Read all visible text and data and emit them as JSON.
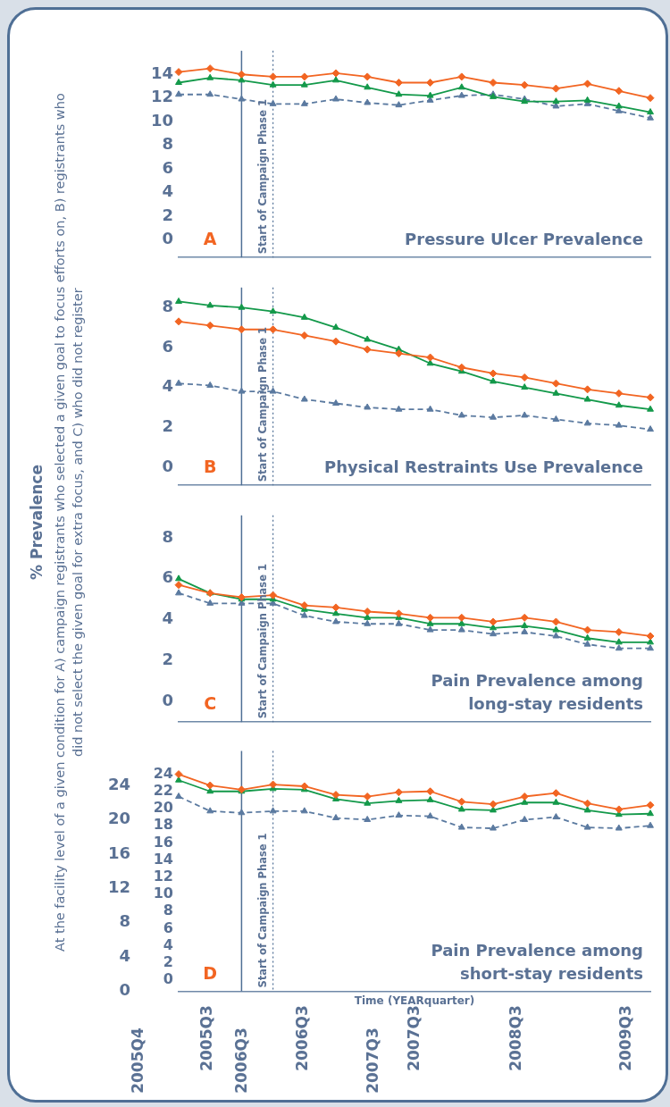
{
  "chart_data": [
    {
      "type": "line",
      "title": "Pressure Ulcer Prevalence",
      "categories": [
        null,
        null,
        null,
        null,
        null,
        null,
        null,
        null,
        null,
        null,
        null,
        null,
        null,
        null,
        null,
        null
      ],
      "series": [
        {
          "color": "#f26522",
          "marker": "diamond",
          "line_style": "solid",
          "values": [
            14.2,
            14.5,
            14.0,
            13.8,
            13.8,
            14.1,
            13.8,
            13.3,
            13.3,
            13.8,
            13.3,
            13.1,
            12.8,
            13.2,
            12.6,
            12.0
          ]
        },
        {
          "color": "#13994a",
          "marker": "triangle",
          "line_style": "solid",
          "values": [
            13.3,
            13.7,
            13.5,
            13.1,
            13.1,
            13.5,
            12.9,
            12.3,
            12.2,
            12.9,
            12.1,
            11.7,
            11.7,
            11.8,
            11.3,
            10.8
          ]
        },
        {
          "color": "#5b7aa0",
          "marker": "triangle",
          "line_style": "dashed",
          "values": [
            12.3,
            12.3,
            11.9,
            11.5,
            11.5,
            11.9,
            11.6,
            11.4,
            11.8,
            12.2,
            12.3,
            11.9,
            11.3,
            11.5,
            10.9,
            10.3
          ]
        }
      ],
      "ylim": [
        -1.5,
        16
      ],
      "yticks": [
        0,
        2,
        4,
        6,
        8,
        10,
        12,
        14
      ],
      "grid": false,
      "legend": false,
      "tick_labels": "y",
      "annotations": [
        "A",
        "Start of Campaign Phase 1"
      ]
    },
    {
      "type": "line",
      "title": "Physical Restraints Use Prevalence",
      "categories": [
        null,
        null,
        null,
        null,
        null,
        null,
        null,
        null,
        null,
        null,
        null,
        null,
        null,
        null,
        null,
        null
      ],
      "series": [
        {
          "color": "#f26522",
          "marker": "diamond",
          "line_style": "solid",
          "values": [
            7.3,
            7.1,
            6.9,
            6.9,
            6.6,
            6.3,
            5.9,
            5.7,
            5.5,
            5.0,
            4.7,
            4.5,
            4.2,
            3.9,
            3.7,
            3.5
          ]
        },
        {
          "color": "#13994a",
          "marker": "triangle",
          "line_style": "solid",
          "values": [
            8.3,
            8.1,
            8.0,
            7.8,
            7.5,
            7.0,
            6.4,
            5.9,
            5.2,
            4.8,
            4.3,
            4.0,
            3.7,
            3.4,
            3.1,
            2.9
          ]
        },
        {
          "color": "#5b7aa0",
          "marker": "triangle",
          "line_style": "dashed",
          "values": [
            4.2,
            4.1,
            3.8,
            3.8,
            3.4,
            3.2,
            3.0,
            2.9,
            2.9,
            2.6,
            2.5,
            2.6,
            2.4,
            2.2,
            2.1,
            1.9
          ]
        }
      ],
      "ylim": [
        -0.9,
        9
      ],
      "yticks": [
        0,
        2,
        4,
        6,
        8
      ],
      "grid": false,
      "legend": false,
      "tick_labels": "y",
      "annotations": [
        "B",
        "Start of Campaign Phase 1"
      ]
    },
    {
      "type": "line",
      "title": "Pain Prevalence among\nlong-stay residents",
      "ylabel": "% Prevalence",
      "subtitle": "At the facility level of a given condition for A) campaign registrants who selected a given goal to focus efforts on,  B) registrants who did not select the given goal for extra focus, and C) who did not register",
      "categories": [
        null,
        null,
        null,
        null,
        null,
        null,
        null,
        null,
        null,
        null,
        null,
        null,
        null,
        null,
        null,
        null
      ],
      "series": [
        {
          "color": "#f26522",
          "marker": "diamond",
          "line_style": "solid",
          "values": [
            5.7,
            5.3,
            5.1,
            5.2,
            4.7,
            4.6,
            4.4,
            4.3,
            4.1,
            4.1,
            3.9,
            4.1,
            3.9,
            3.5,
            3.4,
            3.2
          ]
        },
        {
          "color": "#13994a",
          "marker": "triangle",
          "line_style": "solid",
          "values": [
            6.0,
            5.3,
            5.0,
            5.0,
            4.5,
            4.3,
            4.1,
            4.1,
            3.8,
            3.8,
            3.6,
            3.7,
            3.5,
            3.1,
            2.9,
            2.9
          ]
        },
        {
          "color": "#5b7aa0",
          "marker": "triangle",
          "line_style": "dashed",
          "values": [
            5.3,
            4.8,
            4.8,
            4.8,
            4.2,
            3.9,
            3.8,
            3.8,
            3.5,
            3.5,
            3.3,
            3.4,
            3.2,
            2.8,
            2.6,
            2.6
          ]
        }
      ],
      "ylim": [
        -1,
        9.1
      ],
      "yticks": [
        0,
        2,
        4,
        6,
        8
      ],
      "grid": false,
      "legend": false,
      "tick_labels": "y",
      "annotations": [
        "C",
        "Start of Campaign Phase 1"
      ]
    },
    {
      "type": "line",
      "title": "Pain Prevalence among\nshort-stay residents",
      "xlabel": "Time (YEARquarter)",
      "categories": [
        null,
        null,
        null,
        null,
        null,
        null,
        null,
        null,
        null,
        null,
        null,
        null,
        null,
        null,
        null,
        null
      ],
      "series": [
        {
          "color": "#f26522",
          "marker": "diamond",
          "line_style": "solid",
          "values": [
            24.0,
            22.7,
            22.2,
            22.8,
            22.6,
            21.6,
            21.4,
            21.9,
            22.0,
            20.8,
            20.5,
            21.4,
            21.8,
            20.6,
            19.9,
            20.4
          ]
        },
        {
          "color": "#13994a",
          "marker": "triangle",
          "line_style": "solid",
          "values": [
            23.3,
            22.0,
            22.0,
            22.3,
            22.2,
            21.1,
            20.6,
            20.9,
            21.0,
            19.9,
            19.8,
            20.7,
            20.7,
            19.8,
            19.3,
            19.4
          ]
        },
        {
          "color": "#5b7aa0",
          "marker": "triangle",
          "line_style": "dashed",
          "values": [
            21.4,
            19.7,
            19.5,
            19.7,
            19.7,
            18.9,
            18.7,
            19.2,
            19.1,
            17.8,
            17.7,
            18.7,
            19.0,
            17.8,
            17.7,
            18.0
          ]
        }
      ],
      "ylim": [
        -1.3,
        26.7
      ],
      "yticks": [
        0,
        2,
        4,
        6,
        8,
        10,
        12,
        14,
        16,
        18,
        20,
        22,
        24
      ],
      "y2lim": [
        0,
        28
      ],
      "y2ticks": [
        0,
        4,
        8,
        12,
        16,
        20,
        24
      ],
      "grid": false,
      "legend": false,
      "tick_labels": "y",
      "annotations": [
        "D",
        "Start of Campaign Phase 1",
        "2005Q4",
        "2005Q3",
        "2006Q3",
        "2006Q3",
        "2007Q3",
        "2007Q3",
        "2008Q3",
        "2009Q3"
      ]
    }
  ]
}
